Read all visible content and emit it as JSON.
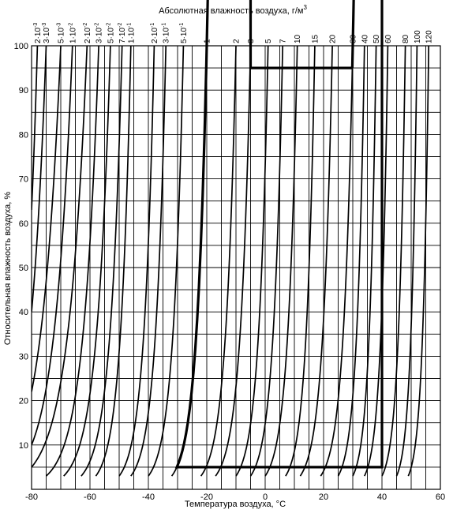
{
  "chart_data": {
    "type": "line",
    "title": "",
    "xlabel": "Температура воздуха, °C",
    "ylabel": "Относительная влажность воздуха, %",
    "top_label": "Абсолютная влажность воздуха, г/м",
    "top_label_sup": "3",
    "xlim": [
      -80,
      60
    ],
    "ylim": [
      0,
      100
    ],
    "x_ticks": [
      "-80",
      "-60",
      "-40",
      "-20",
      "0",
      "20",
      "40",
      "60"
    ],
    "y_ticks": [
      "10",
      "20",
      "30",
      "40",
      "50",
      "60",
      "70",
      "80",
      "90",
      "100"
    ],
    "grid": true,
    "grid_x_step": 5,
    "grid_y_step": 5,
    "top_axis": [
      {
        "mant": "2·10",
        "exp": "-3",
        "value": 0.002
      },
      {
        "mant": "3·10",
        "exp": "-3",
        "value": 0.003
      },
      {
        "mant": "5·10",
        "exp": "-3",
        "value": 0.005
      },
      {
        "mant": "1·10",
        "exp": "-2",
        "value": 0.01
      },
      {
        "mant": "2·10",
        "exp": "-2",
        "value": 0.02
      },
      {
        "mant": "3·10",
        "exp": "-2",
        "value": 0.03
      },
      {
        "mant": "5·10",
        "exp": "-2",
        "value": 0.05
      },
      {
        "mant": "7·10",
        "exp": "-2",
        "value": 0.07
      },
      {
        "mant": "1·10",
        "exp": "-1",
        "value": 0.1
      },
      {
        "mant": "2·10",
        "exp": "-1",
        "value": 0.2
      },
      {
        "mant": "3·10",
        "exp": "-1",
        "value": 0.3
      },
      {
        "mant": "5·10",
        "exp": "-1",
        "value": 0.5
      },
      {
        "mant": "1",
        "exp": "",
        "value": 1
      },
      {
        "mant": "2",
        "exp": "",
        "value": 2
      },
      {
        "mant": "3",
        "exp": "",
        "value": 3
      },
      {
        "mant": "5",
        "exp": "",
        "value": 5
      },
      {
        "mant": "7",
        "exp": "",
        "value": 7
      },
      {
        "mant": "10",
        "exp": "",
        "value": 10
      },
      {
        "mant": "15",
        "exp": "",
        "value": 15
      },
      {
        "mant": "20",
        "exp": "",
        "value": 20
      },
      {
        "mant": "30",
        "exp": "",
        "value": 30
      },
      {
        "mant": "40",
        "exp": "",
        "value": 40
      },
      {
        "mant": "50",
        "exp": "",
        "value": 50
      },
      {
        "mant": "60",
        "exp": "",
        "value": 60
      },
      {
        "mant": "80",
        "exp": "",
        "value": 80
      },
      {
        "mant": "100",
        "exp": "",
        "value": 100
      },
      {
        "mant": "120",
        "exp": "",
        "value": 120
      }
    ],
    "series": [
      {
        "value": 0.002,
        "points": [
          [
            -78,
            100
          ],
          [
            -80,
            63
          ]
        ]
      },
      {
        "value": 0.003,
        "points": [
          [
            -75,
            100
          ],
          [
            -80,
            40
          ]
        ]
      },
      {
        "value": 0.005,
        "points": [
          [
            -70,
            100
          ],
          [
            -80,
            22
          ]
        ]
      },
      {
        "value": 0.01,
        "points": [
          [
            -66,
            100
          ],
          [
            -80,
            10
          ]
        ]
      },
      {
        "value": 0.02,
        "points": [
          [
            -61,
            100
          ],
          [
            -80,
            5
          ]
        ]
      },
      {
        "value": 0.03,
        "points": [
          [
            -57,
            100
          ],
          [
            -75,
            3
          ]
        ]
      },
      {
        "value": 0.05,
        "points": [
          [
            -53,
            100
          ],
          [
            -69,
            3
          ]
        ]
      },
      {
        "value": 0.07,
        "points": [
          [
            -49,
            100
          ],
          [
            -63,
            3
          ]
        ]
      },
      {
        "value": 0.1,
        "points": [
          [
            -46,
            100
          ],
          [
            -58,
            3
          ]
        ]
      },
      {
        "value": 0.2,
        "points": [
          [
            -38,
            100
          ],
          [
            -50,
            3
          ]
        ]
      },
      {
        "value": 0.3,
        "points": [
          [
            -34,
            100
          ],
          [
            -46,
            3
          ]
        ]
      },
      {
        "value": 0.5,
        "points": [
          [
            -28,
            100
          ],
          [
            -40,
            3
          ]
        ]
      },
      {
        "value": 1,
        "points": [
          [
            -20,
            100
          ],
          [
            -32,
            3
          ]
        ]
      },
      {
        "value": 2,
        "points": [
          [
            -10,
            100
          ],
          [
            -22,
            3
          ]
        ]
      },
      {
        "value": 3,
        "points": [
          [
            -5,
            100
          ],
          [
            -17,
            3
          ]
        ]
      },
      {
        "value": 5,
        "points": [
          [
            1,
            100
          ],
          [
            -10,
            3
          ]
        ]
      },
      {
        "value": 7,
        "points": [
          [
            6,
            100
          ],
          [
            -5,
            3
          ]
        ]
      },
      {
        "value": 10,
        "points": [
          [
            11,
            100
          ],
          [
            0,
            3
          ]
        ]
      },
      {
        "value": 15,
        "points": [
          [
            17,
            100
          ],
          [
            7,
            3
          ]
        ]
      },
      {
        "value": 20,
        "points": [
          [
            23,
            100
          ],
          [
            12,
            3
          ]
        ]
      },
      {
        "value": 30,
        "points": [
          [
            30,
            100
          ],
          [
            19,
            3
          ]
        ]
      },
      {
        "value": 40,
        "points": [
          [
            34,
            100
          ],
          [
            25,
            3
          ]
        ]
      },
      {
        "value": 50,
        "points": [
          [
            38,
            100
          ],
          [
            30,
            3
          ]
        ]
      },
      {
        "value": 60,
        "points": [
          [
            42,
            100
          ],
          [
            34,
            3
          ]
        ]
      },
      {
        "value": 80,
        "points": [
          [
            48,
            100
          ],
          [
            40,
            3
          ]
        ]
      },
      {
        "value": 100,
        "points": [
          [
            52,
            100
          ],
          [
            45,
            3
          ]
        ]
      },
      {
        "value": 120,
        "points": [
          [
            56,
            100
          ],
          [
            49,
            3
          ]
        ]
      }
    ],
    "region_outline": {
      "top_rh": 95,
      "bottom_rh": 5,
      "left_temp": -5,
      "right_temp": 40,
      "top_right_temp": 30,
      "curve_left_value": 1,
      "curve_right_value": 30
    }
  }
}
